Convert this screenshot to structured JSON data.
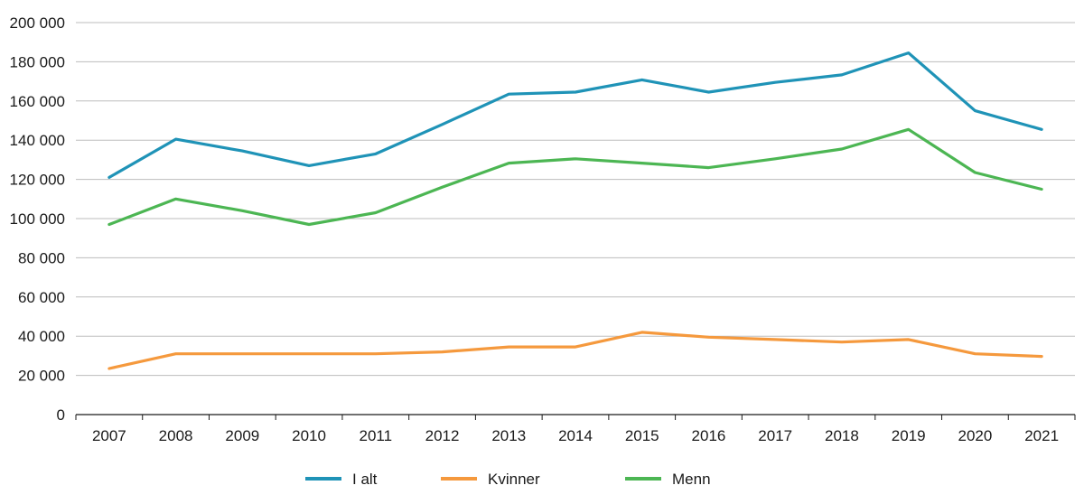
{
  "chart_data": {
    "type": "line",
    "title": "",
    "xlabel": "",
    "ylabel": "",
    "categories": [
      "2007",
      "2008",
      "2009",
      "2010",
      "2011",
      "2012",
      "2013",
      "2014",
      "2015",
      "2016",
      "2017",
      "2018",
      "2019",
      "2020",
      "2021"
    ],
    "ylim": [
      0,
      200000
    ],
    "yticks": [
      0,
      20000,
      40000,
      60000,
      80000,
      100000,
      120000,
      140000,
      160000,
      180000,
      200000
    ],
    "ytick_labels": [
      "0",
      "20 000",
      "40 000",
      "60 000",
      "80 000",
      "100 000",
      "120 000",
      "140 000",
      "160 000",
      "180 000",
      "200 000"
    ],
    "grid": true,
    "legend_position": "bottom",
    "series": [
      {
        "name": "I alt",
        "color": "#1f93b7",
        "values": [
          121000,
          140500,
          134500,
          127000,
          133000,
          148000,
          163500,
          164500,
          170800,
          164500,
          169500,
          173300,
          184500,
          155000,
          145500
        ]
      },
      {
        "name": "Kvinner",
        "color": "#f5993d",
        "values": [
          23500,
          31000,
          31000,
          31000,
          31000,
          32000,
          34500,
          34500,
          42000,
          39500,
          38300,
          37000,
          38300,
          31000,
          29700
        ]
      },
      {
        "name": "Menn",
        "color": "#4cb653",
        "values": [
          97000,
          110000,
          104000,
          97000,
          103000,
          116000,
          128300,
          130500,
          128300,
          126000,
          130500,
          135500,
          145500,
          123500,
          115000
        ]
      }
    ]
  }
}
